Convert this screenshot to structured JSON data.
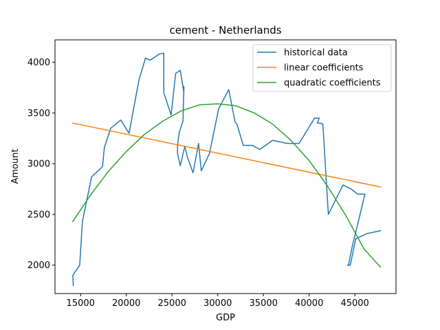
{
  "chart_data": {
    "type": "line",
    "title": "cement - Netherlands",
    "xlabel": "GDP",
    "ylabel": "Amount",
    "xlim": [
      12200,
      49500
    ],
    "ylim": [
      1720,
      4220
    ],
    "xticks": [
      15000,
      20000,
      25000,
      30000,
      35000,
      40000,
      45000
    ],
    "yticks": [
      2000,
      2500,
      3000,
      3500,
      4000
    ],
    "grid": false,
    "legend_position": "top-right",
    "series": [
      {
        "name": "historical data",
        "color": "#1f77b4",
        "x": [
          14200,
          14150,
          14900,
          15200,
          16200,
          17400,
          17600,
          18300,
          19400,
          20300,
          21400,
          22100,
          22600,
          23600,
          24100,
          24100,
          24900,
          25400,
          25900,
          26300,
          26300,
          26200,
          25800,
          25600,
          25600,
          25900,
          26400,
          26700,
          27300,
          27900,
          28200,
          29100,
          30100,
          31200,
          31900,
          32100,
          32800,
          33800,
          34600,
          36000,
          37600,
          38900,
          40600,
          41100,
          40900,
          41200,
          41500,
          42100,
          43700,
          44600,
          45300,
          46100,
          45300,
          44700,
          44300,
          44200,
          44500,
          45100,
          46300,
          47800
        ],
        "y": [
          1800,
          1900,
          2000,
          2430,
          2870,
          2970,
          3160,
          3350,
          3430,
          3300,
          3830,
          4040,
          4020,
          4080,
          4090,
          3700,
          3480,
          3890,
          3920,
          3700,
          3760,
          3420,
          3310,
          3180,
          3100,
          2980,
          3170,
          3060,
          2910,
          3200,
          2930,
          3100,
          3540,
          3730,
          3410,
          3390,
          3180,
          3180,
          3140,
          3230,
          3200,
          3200,
          3450,
          3450,
          3400,
          3400,
          3390,
          2500,
          2790,
          2750,
          2700,
          2700,
          2400,
          2180,
          2000,
          2000,
          2000,
          2260,
          2310,
          2340
        ]
      },
      {
        "name": "linear coefficients",
        "color": "#ff7f0e",
        "x": [
          14150,
          47800
        ],
        "y": [
          3400,
          2770
        ]
      },
      {
        "name": "quadratic coefficients",
        "color": "#2ca02c",
        "x": [
          14150,
          16000,
          18000,
          20000,
          22000,
          24000,
          26000,
          28000,
          30000,
          32000,
          34000,
          36000,
          38000,
          40000,
          42000,
          44000,
          46000,
          47800
        ],
        "y": [
          2430,
          2680,
          2920,
          3120,
          3290,
          3420,
          3520,
          3580,
          3590,
          3570,
          3500,
          3390,
          3230,
          3030,
          2780,
          2490,
          2160,
          1980
        ]
      }
    ]
  }
}
